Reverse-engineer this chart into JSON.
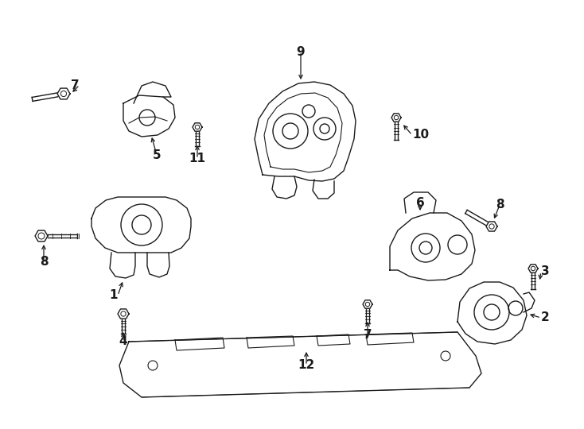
{
  "bg_color": "#ffffff",
  "line_color": "#1a1a1a",
  "text_color": "#000000",
  "fig_width": 7.34,
  "fig_height": 5.4,
  "dpi": 100,
  "lw": 1.0
}
